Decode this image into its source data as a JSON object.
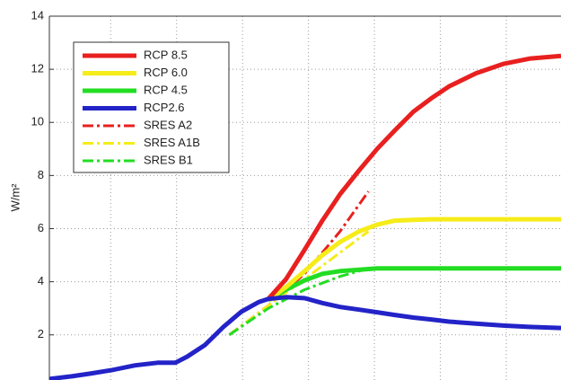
{
  "chart_data": {
    "type": "line",
    "y_label": "W/m²",
    "xlim": [
      -0.93,
      6.83
    ],
    "xticks": [
      0,
      1,
      2,
      3,
      4,
      5,
      6
    ],
    "ylim": [
      0.3,
      14
    ],
    "yticks": [
      2,
      4,
      6,
      8,
      10,
      12,
      14
    ],
    "grid": true,
    "legend_position": "upper-left",
    "series": [
      {
        "name": "RCP 8.5",
        "color": "#e8201f",
        "linestyle": "solid",
        "x": [
          2.39,
          2.66,
          2.94,
          3.21,
          3.48,
          3.77,
          4.04,
          4.31,
          4.59,
          4.86,
          5.13,
          5.54,
          5.95,
          6.35,
          6.83
        ],
        "values": [
          3.35,
          4.1,
          5.2,
          6.3,
          7.3,
          8.2,
          9.0,
          9.7,
          10.4,
          10.9,
          11.35,
          11.85,
          12.2,
          12.4,
          12.5
        ]
      },
      {
        "name": "RCP 6.0",
        "color": "#f5ec1a",
        "linestyle": "solid",
        "x": [
          2.39,
          2.66,
          2.94,
          3.21,
          3.48,
          3.77,
          4.04,
          4.31,
          4.59,
          4.86,
          5.13,
          5.54,
          5.95,
          6.35,
          6.83
        ],
        "values": [
          3.3,
          3.8,
          4.4,
          5.0,
          5.5,
          5.9,
          6.15,
          6.3,
          6.33,
          6.35,
          6.35,
          6.35,
          6.35,
          6.35,
          6.35
        ]
      },
      {
        "name": "RCP 4.5",
        "color": "#22dd22",
        "linestyle": "solid",
        "x": [
          2.39,
          2.66,
          2.94,
          3.21,
          3.48,
          3.77,
          4.04,
          4.31,
          4.59,
          4.86,
          5.13,
          5.54,
          5.95,
          6.35,
          6.83
        ],
        "values": [
          3.3,
          3.7,
          4.05,
          4.3,
          4.4,
          4.45,
          4.5,
          4.5,
          4.5,
          4.5,
          4.5,
          4.5,
          4.5,
          4.5,
          4.5
        ]
      },
      {
        "name": "RCP2.6",
        "color": "#2323c8",
        "linestyle": "solid",
        "x": [
          -0.93,
          -0.59,
          -0.31,
          0.03,
          0.37,
          0.71,
          0.98,
          1.16,
          1.43,
          1.71,
          1.98,
          2.25,
          2.39,
          2.66,
          2.94,
          3.21,
          3.48,
          3.77,
          4.04,
          4.31,
          4.59,
          4.86,
          5.13,
          5.54,
          5.95,
          6.35,
          6.83
        ],
        "values": [
          0.34,
          0.44,
          0.54,
          0.68,
          0.85,
          0.95,
          0.95,
          1.18,
          1.62,
          2.3,
          2.87,
          3.24,
          3.35,
          3.42,
          3.38,
          3.2,
          3.05,
          2.95,
          2.85,
          2.75,
          2.65,
          2.58,
          2.5,
          2.42,
          2.35,
          2.3,
          2.26
        ]
      },
      {
        "name": "SRES A2",
        "color": "#e8201f",
        "linestyle": "dashdot",
        "x": [
          1.8,
          2.39,
          2.94,
          3.48,
          3.91
        ],
        "values": [
          2.0,
          3.1,
          4.3,
          5.9,
          7.4
        ]
      },
      {
        "name": "SRES A1B",
        "color": "#f5ec1a",
        "linestyle": "dashdot",
        "x": [
          1.8,
          2.39,
          2.94,
          3.48,
          3.91
        ],
        "values": [
          2.0,
          3.1,
          4.1,
          5.1,
          5.9
        ]
      },
      {
        "name": "SRES B1",
        "color": "#22dd22",
        "linestyle": "dashdot",
        "x": [
          1.8,
          2.39,
          2.94,
          3.48,
          3.91
        ],
        "values": [
          2.0,
          3.0,
          3.7,
          4.2,
          4.5
        ]
      }
    ]
  }
}
